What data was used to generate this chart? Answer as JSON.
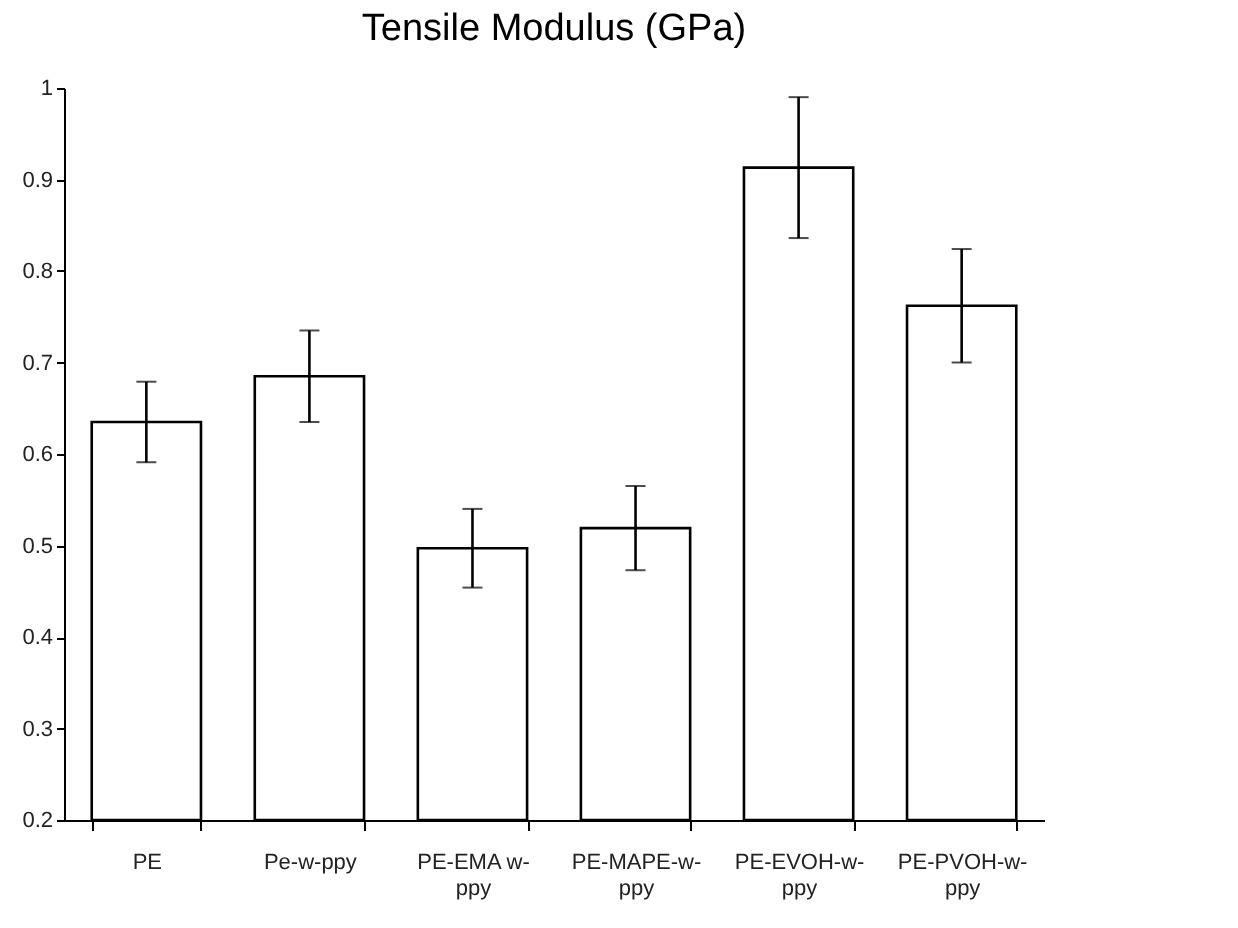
{
  "chart_data": {
    "type": "bar",
    "title": "Tensile Modulus (GPa)",
    "categories": [
      "PE",
      "Pe-w-ppy",
      "PE-EMA w-ppy",
      "PE-MAPE-w-ppy",
      "PE-EVOH-w-ppy",
      "PE-PVOH-w-ppy"
    ],
    "values": [
      0.635,
      0.685,
      0.497,
      0.519,
      0.913,
      0.762
    ],
    "errors": [
      0.044,
      0.05,
      0.043,
      0.046,
      0.077,
      0.062
    ],
    "color": "#ffffff",
    "ylim": [
      0.2,
      1
    ],
    "yticks": [
      0.2,
      0.3,
      0.4,
      0.5,
      0.6,
      0.7,
      0.8,
      0.9,
      {
        "value": 1,
        "label": "1"
      }
    ],
    "grid": false
  }
}
